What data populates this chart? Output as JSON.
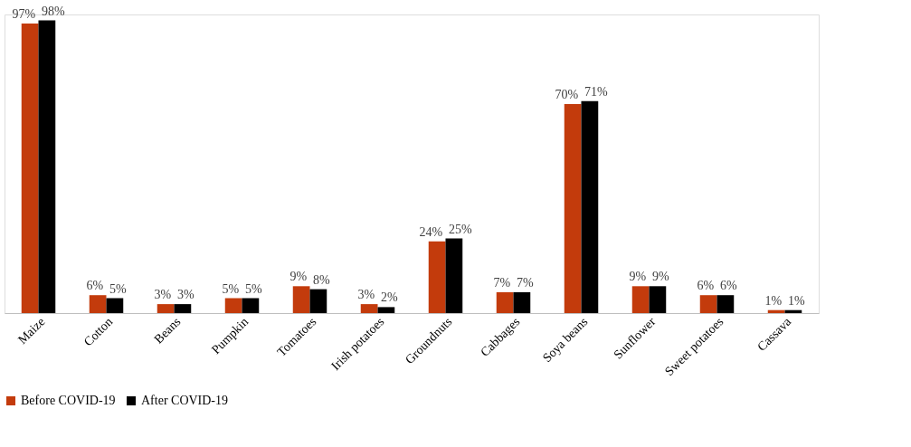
{
  "chart_data": {
    "type": "bar",
    "categories": [
      "Maize",
      "Cotton",
      "Beans",
      "Pumpkin",
      "Tomatoes",
      "Irish potatoes",
      "Groundnuts",
      "Cabbages",
      "Soya beans",
      "Sunflower",
      "Sweet potatoes",
      "Cassava"
    ],
    "series": [
      {
        "name": "Before COVID-19",
        "color": "#c33b0c",
        "values": [
          97,
          6,
          3,
          5,
          9,
          3,
          24,
          7,
          70,
          9,
          6,
          1
        ],
        "value_labels": [
          "97%",
          "6%",
          "3%",
          "5%",
          "9%",
          "3%",
          "24%",
          "7%",
          "70%",
          "9%",
          "6%",
          "1%"
        ]
      },
      {
        "name": "After COVID-19",
        "color": "#000000",
        "values": [
          98,
          5,
          3,
          5,
          8,
          2,
          25,
          7,
          71,
          9,
          6,
          1
        ],
        "value_labels": [
          "98%",
          "5%",
          "3%",
          "5%",
          "8%",
          "2%",
          "25%",
          "7%",
          "71%",
          "9%",
          "6%",
          "1%"
        ]
      }
    ],
    "legend": "bottom",
    "grid": false
  }
}
